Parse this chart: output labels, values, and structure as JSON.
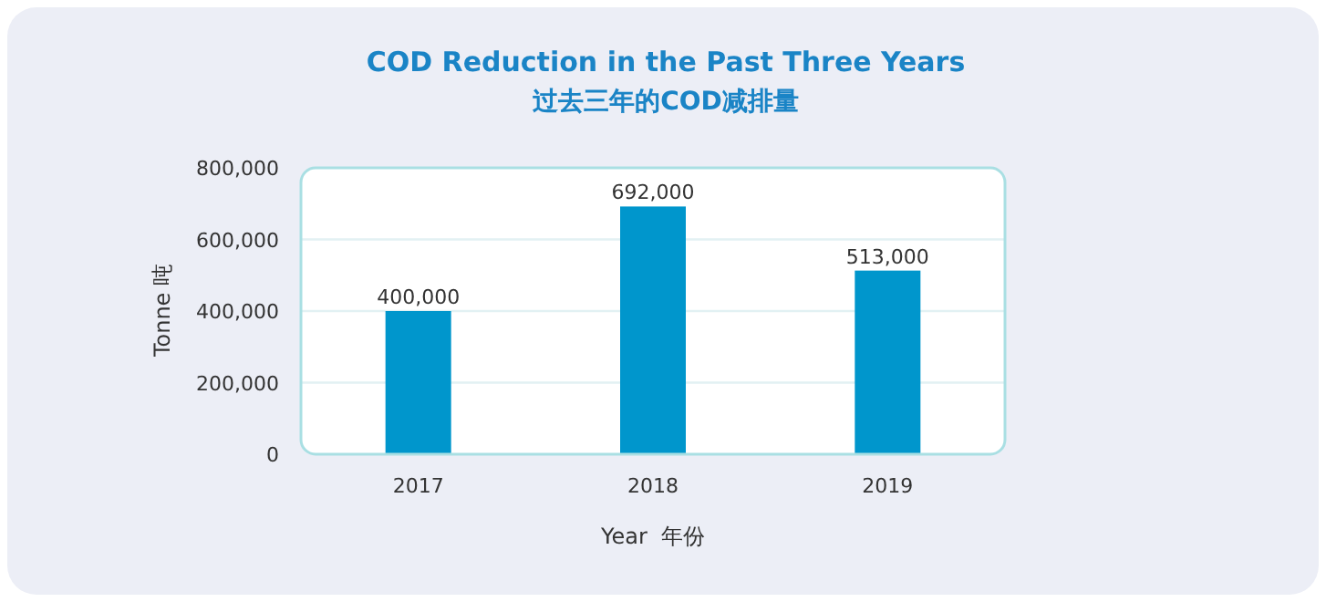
{
  "chart_data": {
    "type": "bar",
    "title": "COD Reduction in the Past Three Years",
    "subtitle": "过去三年的COD减排量",
    "xlabel": "Year  年份",
    "ylabel": "Tonne 吨",
    "categories": [
      "2017",
      "2018",
      "2019"
    ],
    "values": [
      400000,
      692000,
      513000
    ],
    "value_labels": [
      "400,000",
      "692,000",
      "513,000"
    ],
    "color": "#0096cc",
    "ylim": [
      0,
      800000
    ],
    "yticks": [
      0,
      {
        "value": 200000,
        "label": "200,000"
      },
      {
        "value": 400000,
        "label": "400,000"
      },
      {
        "value": 600000,
        "label": "600,000"
      },
      {
        "value": 800000,
        "label": "800,000"
      }
    ],
    "grid": "y"
  }
}
